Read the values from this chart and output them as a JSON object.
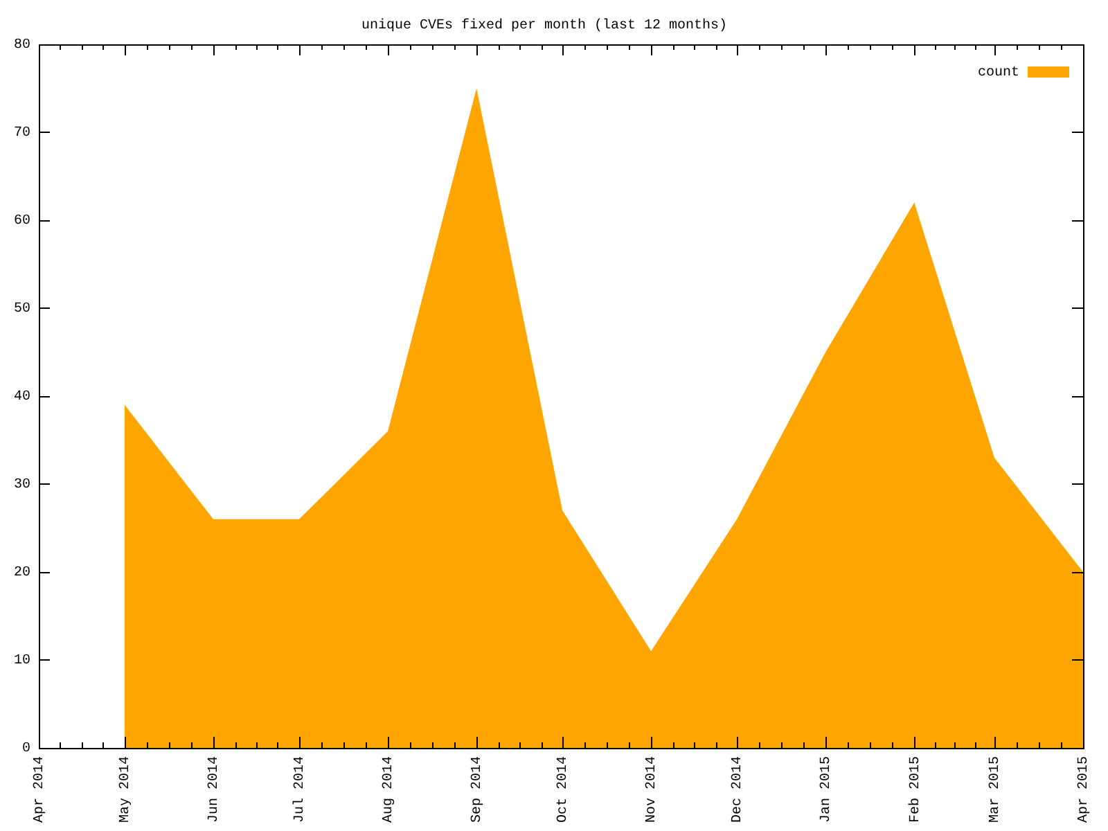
{
  "chart_data": {
    "type": "area",
    "title": "unique CVEs fixed per month (last 12 months)",
    "x": [
      "2014-05",
      "2014-06",
      "2014-07",
      "2014-08",
      "2014-09",
      "2014-10",
      "2014-11",
      "2014-12",
      "2015-01",
      "2015-02",
      "2015-03",
      "2015-04"
    ],
    "series": [
      {
        "name": "count",
        "color": "#ffa500",
        "values": [
          39,
          26,
          26,
          36,
          75,
          27,
          11,
          26,
          45,
          62,
          33,
          20
        ]
      }
    ],
    "xlim": [
      "2014-04",
      "2015-04"
    ],
    "xticks": [
      {
        "value": "2014-04",
        "label": "Apr 2014"
      },
      {
        "value": "2014-05",
        "label": "May 2014"
      },
      {
        "value": "2014-06",
        "label": "Jun 2014"
      },
      {
        "value": "2014-07",
        "label": "Jul 2014"
      },
      {
        "value": "2014-08",
        "label": "Aug 2014"
      },
      {
        "value": "2014-09",
        "label": "Sep 2014"
      },
      {
        "value": "2014-10",
        "label": "Oct 2014"
      },
      {
        "value": "2014-11",
        "label": "Nov 2014"
      },
      {
        "value": "2014-12",
        "label": "Dec 2014"
      },
      {
        "value": "2015-01",
        "label": "Jan 2015"
      },
      {
        "value": "2015-02",
        "label": "Feb 2015"
      },
      {
        "value": "2015-03",
        "label": "Mar 2015"
      },
      {
        "value": "2015-04",
        "label": "Apr 2015"
      }
    ],
    "ylim": [
      0,
      80
    ],
    "yticks": [
      0,
      10,
      20,
      30,
      40,
      50,
      60,
      70,
      80
    ],
    "grid": false,
    "legend": "top right"
  }
}
